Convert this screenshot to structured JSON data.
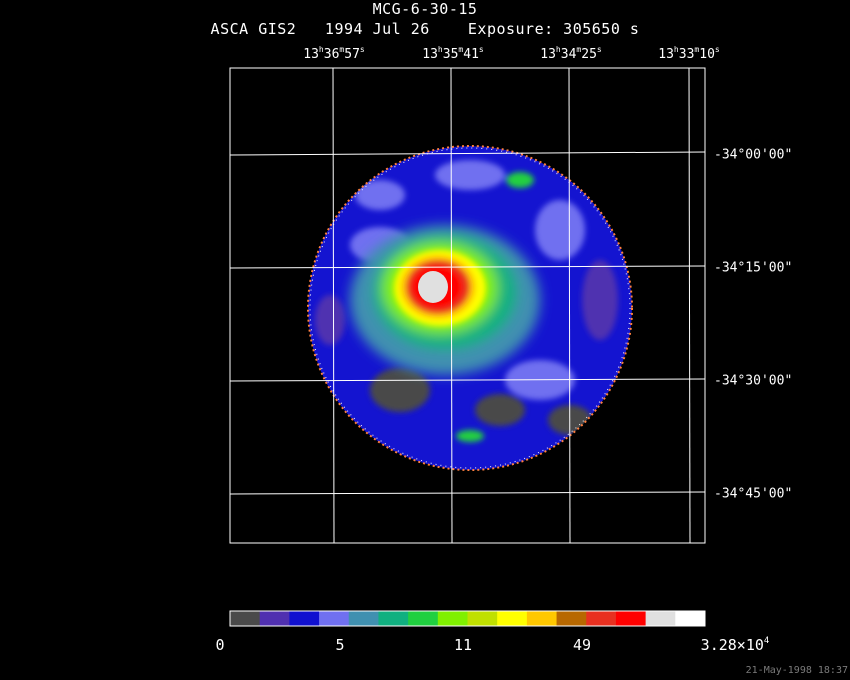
{
  "header": {
    "object": "MCG-6-30-15",
    "line2": "ASCA GIS2   1994 Jul 26    Exposure: 305650 s"
  },
  "ra_labels": [
    {
      "h": "13",
      "m": "36",
      "s": "57"
    },
    {
      "h": "13",
      "m": "35",
      "s": "41"
    },
    {
      "h": "13",
      "m": "34",
      "s": "25"
    },
    {
      "h": "13",
      "m": "33",
      "s": "10"
    }
  ],
  "dec_labels": [
    "-34°00'00\"",
    "-34°15'00\"",
    "-34°30'00\"",
    "-34°45'00\""
  ],
  "colorbar": {
    "colors": [
      "#4a4a4a",
      "#5030b0",
      "#1010d0",
      "#7070f0",
      "#4090b0",
      "#10b080",
      "#20d040",
      "#80f000",
      "#c0e000",
      "#ffff00",
      "#ffc800",
      "#b86800",
      "#e83020",
      "#ff0000",
      "#e0e0e0",
      "#ffffff"
    ],
    "tick_labels": [
      "0",
      "5",
      "11",
      "49",
      "3.28×10"
    ],
    "tick_exponent": "4"
  },
  "timestamp": "21-May-1998 18:37"
}
